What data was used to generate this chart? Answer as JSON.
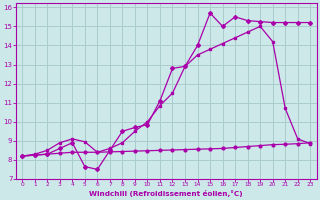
{
  "xlabel": "Windchill (Refroidissement éolien,°C)",
  "bg_color": "#cce8e8",
  "grid_color": "#aacccc",
  "line_color": "#aa00aa",
  "xlim": [
    -0.5,
    23.5
  ],
  "ylim": [
    7,
    16.2
  ],
  "xticks": [
    0,
    1,
    2,
    3,
    4,
    5,
    6,
    7,
    8,
    9,
    10,
    11,
    12,
    13,
    14,
    15,
    16,
    17,
    18,
    19,
    20,
    21,
    22,
    23
  ],
  "yticks": [
    7,
    8,
    9,
    10,
    11,
    12,
    13,
    14,
    15,
    16
  ],
  "line1_x": [
    0,
    1,
    2,
    3,
    4,
    5,
    6,
    7,
    8,
    9,
    10,
    11,
    12,
    13,
    14,
    15,
    16,
    17,
    18,
    19,
    20,
    21,
    22,
    23
  ],
  "line1_y": [
    8.2,
    8.25,
    8.3,
    8.35,
    8.4,
    8.4,
    8.4,
    8.42,
    8.44,
    8.46,
    8.48,
    8.5,
    8.52,
    8.54,
    8.56,
    8.58,
    8.6,
    8.65,
    8.7,
    8.75,
    8.8,
    8.82,
    8.85,
    8.9
  ],
  "line2_x": [
    0,
    1,
    2,
    3,
    4,
    5,
    6,
    7,
    8,
    9,
    10,
    11,
    12,
    13,
    14,
    15,
    16,
    17,
    18,
    19,
    20,
    21,
    22,
    23
  ],
  "line2_y": [
    8.2,
    8.25,
    8.3,
    8.6,
    8.9,
    7.65,
    7.5,
    8.5,
    9.5,
    9.7,
    9.85,
    11.1,
    12.8,
    12.9,
    14.0,
    15.7,
    15.0,
    15.5,
    15.3,
    15.25,
    15.2,
    15.2,
    15.2,
    15.2
  ],
  "line3_x": [
    0,
    1,
    2,
    3,
    4,
    5,
    6,
    7,
    8,
    9,
    10,
    11,
    12,
    13,
    14,
    15,
    16,
    17,
    18,
    19,
    20,
    21,
    22,
    23
  ],
  "line3_y": [
    8.2,
    8.3,
    8.5,
    8.9,
    9.1,
    8.95,
    8.4,
    8.6,
    8.9,
    9.5,
    10.0,
    10.85,
    11.5,
    12.9,
    13.5,
    13.8,
    14.1,
    14.4,
    14.7,
    15.0,
    14.2,
    10.7,
    9.1,
    8.85
  ]
}
